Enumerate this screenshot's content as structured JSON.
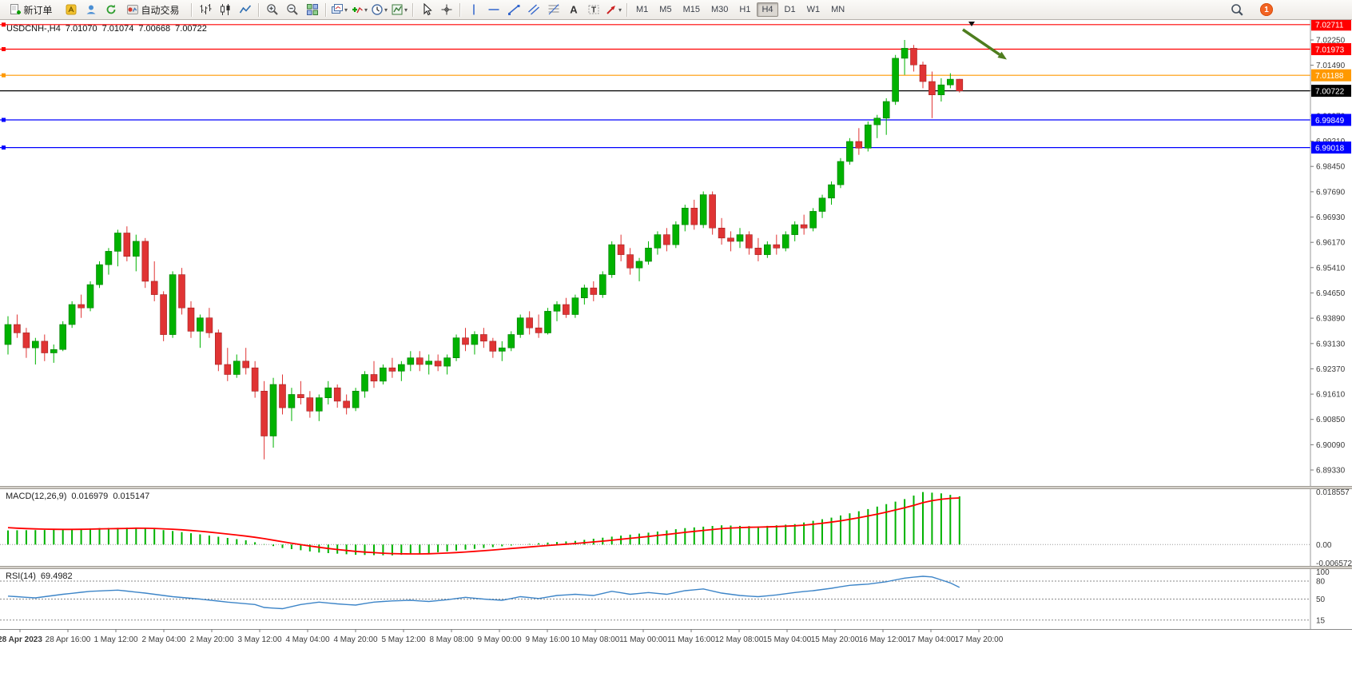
{
  "toolbar": {
    "new_order_label": "新订单",
    "autotrading_label": "自动交易",
    "timeframe_buttons": [
      "M1",
      "M5",
      "M15",
      "M30",
      "H1",
      "H4",
      "D1",
      "W1",
      "MN"
    ],
    "active_timeframe": "H4",
    "notification_count": "1",
    "icons": [
      "new-order",
      "metaeditor",
      "community",
      "refresh",
      "autotrading",
      "bar-chart",
      "candlestick-chart",
      "line-chart",
      "zoom-in",
      "zoom-out",
      "tile-windows",
      "new-chart",
      "indicators",
      "periods",
      "templates",
      "cursor",
      "crosshair",
      "vertical-line",
      "horizontal-line",
      "trendline",
      "equidistant-channel",
      "fibonacci",
      "text",
      "text-label",
      "arrows",
      "search",
      "notifications"
    ]
  },
  "chart": {
    "symbol": "USDCNH-,H4",
    "open": "7.01070",
    "high": "7.01074",
    "low": "7.00668",
    "close": "7.00722"
  },
  "price_axis": {
    "ticks": [
      "7.02250",
      "7.01490",
      "7.00730",
      "6.99970",
      "6.99210",
      "6.98450",
      "6.97690",
      "6.96930",
      "6.96170",
      "6.95410",
      "6.94650",
      "6.93890",
      "6.93130",
      "6.92370",
      "6.91610",
      "6.90850",
      "6.90090",
      "6.89330"
    ]
  },
  "price_levels": [
    {
      "label": "7.02711",
      "value": 7.02711,
      "color": "#ff0000",
      "type": "resistance-line",
      "handles": true
    },
    {
      "label": "7.01973",
      "value": 7.01973,
      "color": "#ff0000",
      "type": "resistance-line",
      "handles": true
    },
    {
      "label": "7.01188",
      "value": 7.01188,
      "color": "#ff9900",
      "type": "level-line",
      "handles": true
    },
    {
      "label": "7.00722",
      "value": 7.00722,
      "color": "#000000",
      "type": "bid-price",
      "handles": false
    },
    {
      "label": "6.99849",
      "value": 6.99849,
      "color": "#0000ff",
      "type": "support-line",
      "handles": true
    },
    {
      "label": "6.99018",
      "value": 6.99018,
      "color": "#0000ff",
      "type": "support-line",
      "handles": true
    }
  ],
  "time_axis": {
    "labels": [
      "28 Apr 2023",
      "28 Apr 16:00",
      "1 May 12:00",
      "2 May 04:00",
      "2 May 20:00",
      "3 May 12:00",
      "4 May 04:00",
      "4 May 20:00",
      "5 May 12:00",
      "8 May 08:00",
      "9 May 00:00",
      "9 May 16:00",
      "10 May 08:00",
      "11 May 00:00",
      "11 May 16:00",
      "12 May 08:00",
      "15 May 04:00",
      "15 May 20:00",
      "16 May 12:00",
      "17 May 04:00",
      "17 May 20:00"
    ]
  },
  "indicators": {
    "macd": {
      "name": "MACD(12,26,9)",
      "value_main": "0.016979",
      "value_signal": "0.015147",
      "axis_max": "0.018557",
      "axis_zero": "0.00",
      "axis_min": "-0.006572",
      "histogram_color": "#00b200",
      "signal_color": "#ff0000"
    },
    "rsi": {
      "name": "RSI(14)",
      "value": "69.4982",
      "axis_labels": [
        "100",
        "80",
        "50",
        "15"
      ],
      "levels": [
        80,
        50,
        15
      ],
      "line_color": "#3d85c8"
    }
  },
  "annotations": {
    "arrow": {
      "color": "#4e7d1e",
      "direction": "down-right"
    }
  },
  "chart_data": {
    "type": "candlestick",
    "symbol": "USDCNH",
    "period": "H4",
    "price_range": [
      6.8885,
      7.0285
    ],
    "up_color": "#00b200",
    "down_color": "#e03434",
    "up_stroke": "#007a00",
    "down_stroke": "#a02020",
    "candles": [
      [
        6.931,
        6.9395,
        6.928,
        6.937
      ],
      [
        6.937,
        6.94,
        6.933,
        6.9345
      ],
      [
        6.9345,
        6.936,
        6.927,
        6.93
      ],
      [
        6.93,
        6.933,
        6.925,
        6.932
      ],
      [
        6.932,
        6.934,
        6.926,
        6.9285
      ],
      [
        6.9285,
        6.931,
        6.9255,
        6.9295
      ],
      [
        6.9295,
        6.938,
        6.929,
        6.937
      ],
      [
        6.937,
        6.944,
        6.936,
        6.943
      ],
      [
        6.943,
        6.946,
        6.939,
        6.942
      ],
      [
        6.942,
        6.95,
        6.941,
        6.949
      ],
      [
        6.949,
        6.956,
        6.948,
        6.955
      ],
      [
        6.955,
        6.96,
        6.952,
        6.959
      ],
      [
        6.959,
        6.9655,
        6.9545,
        6.9645
      ],
      [
        6.9645,
        6.9665,
        6.956,
        6.9575
      ],
      [
        6.9575,
        6.964,
        6.953,
        6.962
      ],
      [
        6.962,
        6.963,
        6.948,
        6.95
      ],
      [
        6.95,
        6.956,
        6.944,
        6.946
      ],
      [
        6.946,
        6.947,
        6.932,
        6.934
      ],
      [
        6.934,
        6.953,
        6.933,
        6.952
      ],
      [
        6.952,
        6.954,
        6.94,
        6.942
      ],
      [
        6.942,
        6.944,
        6.933,
        6.935
      ],
      [
        6.935,
        6.94,
        6.93,
        6.939
      ],
      [
        6.939,
        6.942,
        6.933,
        6.9345
      ],
      [
        6.9345,
        6.9355,
        6.923,
        6.925
      ],
      [
        6.925,
        6.93,
        6.92,
        6.922
      ],
      [
        6.922,
        6.928,
        6.921,
        6.926
      ],
      [
        6.926,
        6.93,
        6.922,
        6.924
      ],
      [
        6.924,
        6.926,
        6.915,
        6.917
      ],
      [
        6.917,
        6.92,
        6.8965,
        6.9035
      ],
      [
        6.9035,
        6.921,
        6.9,
        6.919
      ],
      [
        6.919,
        6.922,
        6.91,
        6.912
      ],
      [
        6.912,
        6.918,
        6.908,
        6.916
      ],
      [
        6.916,
        6.92,
        6.913,
        6.915
      ],
      [
        6.915,
        6.917,
        6.909,
        6.911
      ],
      [
        6.911,
        6.916,
        6.908,
        6.915
      ],
      [
        6.915,
        6.92,
        6.913,
        6.918
      ],
      [
        6.918,
        6.919,
        6.912,
        6.914
      ],
      [
        6.914,
        6.916,
        6.91,
        6.912
      ],
      [
        6.912,
        6.918,
        6.911,
        6.917
      ],
      [
        6.917,
        6.923,
        6.915,
        6.922
      ],
      [
        6.922,
        6.926,
        6.918,
        6.92
      ],
      [
        6.92,
        6.925,
        6.919,
        6.924
      ],
      [
        6.924,
        6.927,
        6.921,
        6.923
      ],
      [
        6.923,
        6.926,
        6.92,
        6.925
      ],
      [
        6.925,
        6.929,
        6.923,
        6.927
      ],
      [
        6.927,
        6.929,
        6.923,
        6.925
      ],
      [
        6.925,
        6.928,
        6.922,
        6.926
      ],
      [
        6.926,
        6.928,
        6.923,
        6.9245
      ],
      [
        6.9245,
        6.928,
        6.922,
        6.927
      ],
      [
        6.927,
        6.934,
        6.926,
        6.933
      ],
      [
        6.933,
        6.936,
        6.929,
        6.931
      ],
      [
        6.931,
        6.935,
        6.928,
        6.934
      ],
      [
        6.934,
        6.936,
        6.93,
        6.932
      ],
      [
        6.932,
        6.933,
        6.927,
        6.929
      ],
      [
        6.929,
        6.932,
        6.926,
        6.93
      ],
      [
        6.93,
        6.935,
        6.929,
        6.934
      ],
      [
        6.934,
        6.94,
        6.933,
        6.939
      ],
      [
        6.939,
        6.941,
        6.934,
        6.936
      ],
      [
        6.936,
        6.94,
        6.933,
        6.9345
      ],
      [
        6.9345,
        6.942,
        6.934,
        6.941
      ],
      [
        6.941,
        6.944,
        6.938,
        6.943
      ],
      [
        6.943,
        6.945,
        6.939,
        6.94
      ],
      [
        6.94,
        6.946,
        6.939,
        6.945
      ],
      [
        6.945,
        6.949,
        6.943,
        6.948
      ],
      [
        6.948,
        6.95,
        6.944,
        6.946
      ],
      [
        6.946,
        6.953,
        6.945,
        6.952
      ],
      [
        6.952,
        6.962,
        6.951,
        6.961
      ],
      [
        6.961,
        6.964,
        6.956,
        6.958
      ],
      [
        6.958,
        6.96,
        6.952,
        6.954
      ],
      [
        6.954,
        6.957,
        6.95,
        6.956
      ],
      [
        6.956,
        6.962,
        6.955,
        6.96
      ],
      [
        6.96,
        6.965,
        6.958,
        6.964
      ],
      [
        6.964,
        6.966,
        6.959,
        6.961
      ],
      [
        6.961,
        6.968,
        6.96,
        6.967
      ],
      [
        6.967,
        6.973,
        6.965,
        6.972
      ],
      [
        6.972,
        6.9745,
        6.9655,
        6.967
      ],
      [
        6.967,
        6.977,
        6.966,
        6.976
      ],
      [
        6.976,
        6.977,
        6.964,
        6.966
      ],
      [
        6.966,
        6.969,
        6.961,
        6.963
      ],
      [
        6.963,
        6.965,
        6.959,
        6.962
      ],
      [
        6.962,
        6.966,
        6.96,
        6.964
      ],
      [
        6.964,
        6.965,
        6.958,
        6.96
      ],
      [
        6.96,
        6.963,
        6.956,
        6.958
      ],
      [
        6.958,
        6.962,
        6.957,
        6.961
      ],
      [
        6.961,
        6.964,
        6.958,
        6.96
      ],
      [
        6.96,
        6.965,
        6.959,
        6.964
      ],
      [
        6.964,
        6.968,
        6.962,
        6.967
      ],
      [
        6.967,
        6.97,
        6.964,
        6.966
      ],
      [
        6.966,
        6.972,
        6.965,
        6.971
      ],
      [
        6.971,
        6.976,
        6.969,
        6.975
      ],
      [
        6.975,
        6.98,
        6.973,
        6.979
      ],
      [
        6.979,
        6.987,
        6.978,
        6.986
      ],
      [
        6.986,
        6.993,
        6.985,
        6.992
      ],
      [
        6.992,
        6.996,
        6.988,
        6.99
      ],
      [
        6.99,
        6.998,
        6.989,
        6.997
      ],
      [
        6.997,
        7.0,
        6.993,
        6.999
      ],
      [
        6.999,
        7.005,
        6.994,
        7.004
      ],
      [
        7.004,
        7.018,
        7.003,
        7.017
      ],
      [
        7.017,
        7.0225,
        7.012,
        7.02
      ],
      [
        7.02,
        7.021,
        7.013,
        7.015
      ],
      [
        7.015,
        7.016,
        7.008,
        7.01
      ],
      [
        7.01,
        7.013,
        6.999,
        7.006
      ],
      [
        7.006,
        7.011,
        7.004,
        7.009
      ],
      [
        7.009,
        7.0125,
        7.008,
        7.0107
      ],
      [
        7.0107,
        7.0108,
        7.0067,
        7.0072
      ]
    ],
    "macd_keypoints": [
      [
        0,
        0.005
      ],
      [
        6,
        0.0052
      ],
      [
        10,
        0.0058
      ],
      [
        14,
        0.006
      ],
      [
        18,
        0.0048
      ],
      [
        22,
        0.0032
      ],
      [
        26,
        0.0015
      ],
      [
        30,
        -0.0012
      ],
      [
        34,
        -0.0028
      ],
      [
        38,
        -0.0036
      ],
      [
        42,
        -0.0038
      ],
      [
        46,
        -0.003
      ],
      [
        50,
        -0.0018
      ],
      [
        54,
        -0.0006
      ],
      [
        58,
        0.0005
      ],
      [
        62,
        0.0013
      ],
      [
        66,
        0.0028
      ],
      [
        70,
        0.0042
      ],
      [
        74,
        0.0058
      ],
      [
        78,
        0.0068
      ],
      [
        82,
        0.0064
      ],
      [
        86,
        0.0072
      ],
      [
        90,
        0.0095
      ],
      [
        94,
        0.0125
      ],
      [
        98,
        0.016
      ],
      [
        100,
        0.0185
      ],
      [
        102,
        0.018
      ],
      [
        104,
        0.017
      ]
    ],
    "rsi_keypoints": [
      [
        0,
        55
      ],
      [
        3,
        52
      ],
      [
        6,
        58
      ],
      [
        9,
        63
      ],
      [
        12,
        65
      ],
      [
        15,
        60
      ],
      [
        18,
        54
      ],
      [
        21,
        50
      ],
      [
        24,
        45
      ],
      [
        27,
        41
      ],
      [
        28,
        36
      ],
      [
        30,
        34
      ],
      [
        32,
        41
      ],
      [
        34,
        45
      ],
      [
        36,
        42
      ],
      [
        38,
        40
      ],
      [
        40,
        45
      ],
      [
        42,
        47
      ],
      [
        44,
        48
      ],
      [
        46,
        46
      ],
      [
        48,
        49
      ],
      [
        50,
        53
      ],
      [
        52,
        50
      ],
      [
        54,
        48
      ],
      [
        56,
        54
      ],
      [
        58,
        51
      ],
      [
        60,
        56
      ],
      [
        62,
        58
      ],
      [
        64,
        56
      ],
      [
        66,
        63
      ],
      [
        68,
        58
      ],
      [
        70,
        61
      ],
      [
        72,
        58
      ],
      [
        74,
        64
      ],
      [
        76,
        67
      ],
      [
        78,
        60
      ],
      [
        80,
        56
      ],
      [
        82,
        54
      ],
      [
        84,
        57
      ],
      [
        86,
        61
      ],
      [
        88,
        64
      ],
      [
        90,
        68
      ],
      [
        92,
        73
      ],
      [
        94,
        75
      ],
      [
        96,
        79
      ],
      [
        98,
        85
      ],
      [
        100,
        88
      ],
      [
        101,
        87
      ],
      [
        102,
        82
      ],
      [
        103,
        77
      ],
      [
        104,
        69.5
      ]
    ]
  }
}
